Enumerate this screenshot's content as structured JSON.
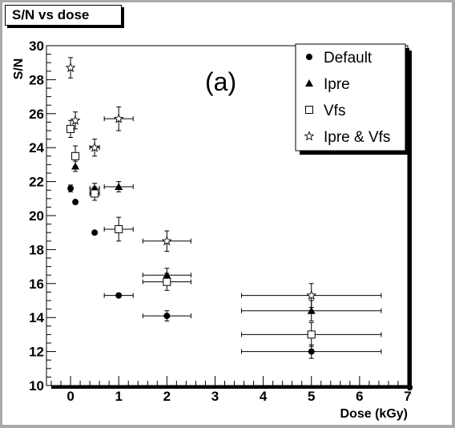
{
  "chart_data": {
    "type": "scatter",
    "title": "S/N vs dose",
    "xlabel": "Dose (kGy)",
    "ylabel": "S/N",
    "xlim": [
      -0.5,
      7
    ],
    "ylim": [
      10,
      30
    ],
    "x_ticks": [
      "0",
      "1",
      "2",
      "3",
      "4",
      "5",
      "6",
      "7"
    ],
    "y_ticks": [
      "10",
      "12",
      "14",
      "16",
      "18",
      "20",
      "22",
      "24",
      "26",
      "28",
      "30"
    ],
    "annotation": "(a)",
    "grid": false,
    "legend_position": "top-right",
    "series": [
      {
        "name": "Default",
        "marker": "filled-circle",
        "points": [
          {
            "x": 0,
            "y": 21.6,
            "xerr": 0,
            "yerr": 0.2
          },
          {
            "x": 0.1,
            "y": 20.8,
            "xerr": 0,
            "yerr": 0.1
          },
          {
            "x": 0.5,
            "y": 19.0,
            "xerr": 0,
            "yerr": 0.1
          },
          {
            "x": 1.0,
            "y": 15.3,
            "xerr": 0.3,
            "yerr": 0.1
          },
          {
            "x": 2.0,
            "y": 14.1,
            "xerr": 0.5,
            "yerr": 0.3
          },
          {
            "x": 5.0,
            "y": 12.0,
            "xerr": 1.45,
            "yerr": 0.4
          }
        ]
      },
      {
        "name": "Ipre",
        "marker": "filled-triangle",
        "points": [
          {
            "x": 0,
            "y": 25.1,
            "xerr": 0,
            "yerr": 0.2
          },
          {
            "x": 0.1,
            "y": 22.9,
            "xerr": 0,
            "yerr": 0.3
          },
          {
            "x": 0.5,
            "y": 21.6,
            "xerr": 0.1,
            "yerr": 0.3
          },
          {
            "x": 1.0,
            "y": 21.7,
            "xerr": 0.3,
            "yerr": 0.3
          },
          {
            "x": 2.0,
            "y": 16.5,
            "xerr": 0.5,
            "yerr": 0.4
          },
          {
            "x": 5.0,
            "y": 14.4,
            "xerr": 1.45,
            "yerr": 0.6
          }
        ]
      },
      {
        "name": "Vfs",
        "marker": "open-square",
        "points": [
          {
            "x": 0,
            "y": 25.1,
            "xerr": 0,
            "yerr": 0.5
          },
          {
            "x": 0.1,
            "y": 23.5,
            "xerr": 0,
            "yerr": 0.6
          },
          {
            "x": 0.5,
            "y": 21.3,
            "xerr": 0.1,
            "yerr": 0.4
          },
          {
            "x": 1.0,
            "y": 19.2,
            "xerr": 0.3,
            "yerr": 0.7
          },
          {
            "x": 2.0,
            "y": 16.1,
            "xerr": 0.5,
            "yerr": 0.5
          },
          {
            "x": 5.0,
            "y": 13.0,
            "xerr": 1.45,
            "yerr": 0.7
          }
        ]
      },
      {
        "name": "Ipre & Vfs",
        "marker": "open-star",
        "points": [
          {
            "x": 0,
            "y": 28.7,
            "xerr": 0,
            "yerr": 0.6
          },
          {
            "x": 0.1,
            "y": 25.6,
            "xerr": 0,
            "yerr": 0.5
          },
          {
            "x": 0.5,
            "y": 24.0,
            "xerr": 0.1,
            "yerr": 0.5
          },
          {
            "x": 1.0,
            "y": 25.7,
            "xerr": 0.3,
            "yerr": 0.7
          },
          {
            "x": 2.0,
            "y": 18.5,
            "xerr": 0.5,
            "yerr": 0.6
          },
          {
            "x": 5.0,
            "y": 15.3,
            "xerr": 1.45,
            "yerr": 0.7
          }
        ]
      }
    ]
  },
  "colors": {
    "frame": "#aaaaaa",
    "frame_shadow": "#000000",
    "plot_background": "#ffffff",
    "markers": "#000000"
  }
}
